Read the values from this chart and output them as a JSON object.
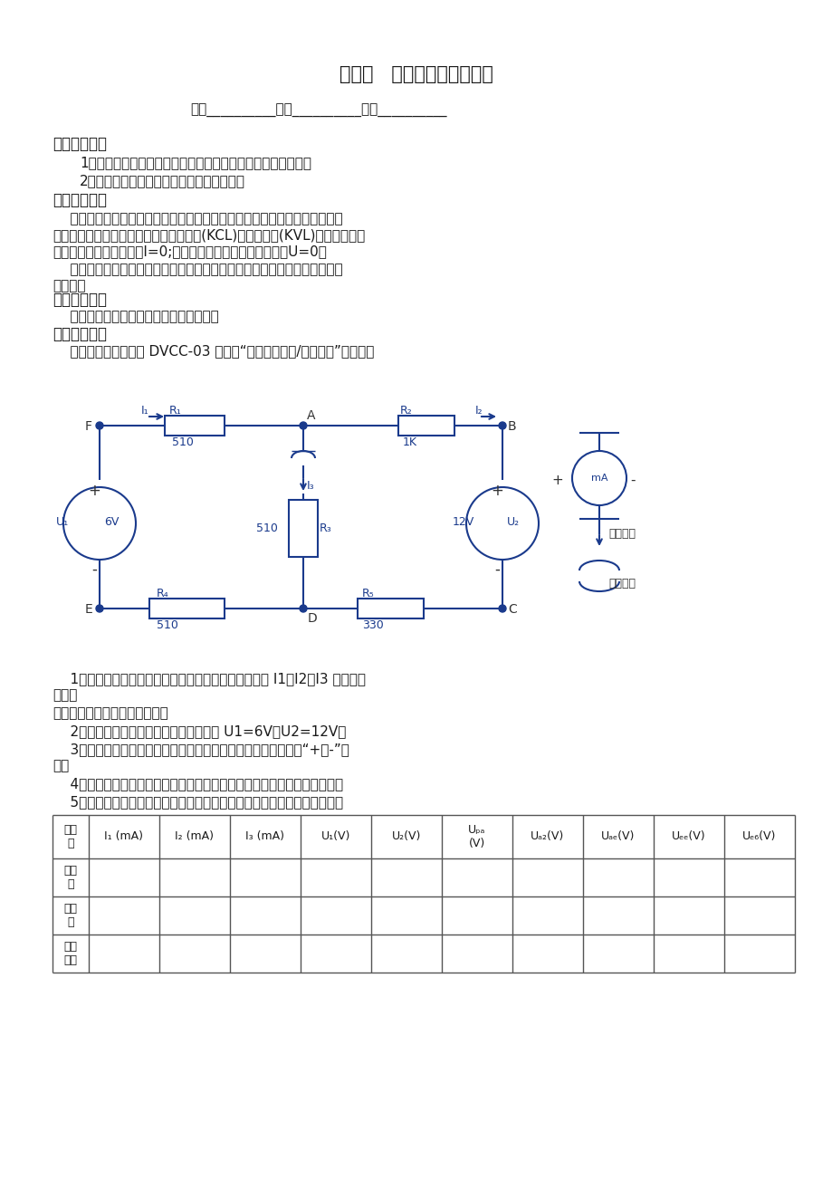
{
  "title": "实验一   基尔霍夫定律的验证",
  "info_line": "班级__________姓名__________学号__________",
  "s1_title": "一、实验目的",
  "s1_1": "1、验证基尔霍夫定律的正确性，加深对基尔霍夫定律的理解。",
  "s1_2": "2、学会用电流插头、插座测量各支路电流。",
  "s2_title": "二、原理说明",
  "s2_p1a": "    基尔霍夫定律是电路的基本定律。测量某电路的各支路电流及每个元件两端",
  "s2_p1b": "的电压，应能分别满足基尔霍夫电流定律(KCL)和电压定律(KVL)。即对电路中",
  "s2_p1c": "的任一个节点而言，应有I=0;对任何一个闭合回路而言，应有U=0。",
  "s2_p2a": "    运用上述定律时必须注意各支路电流或闭合回路的正方向，此方向可预先任",
  "s2_p2b": "意设定。",
  "s3_title": "三、实验设备",
  "s3_content": "    可调直流稳压电源，万用表，实验电路板",
  "s4_title": "四、实验内容",
  "s4_intro": "    实验线路图如下，用 DVCC-03 挂筱的“基尔霍夫定律/叠加原理”电路板。",
  "step1a": "    1、实验前先任意设定三条支路电流正方向。如图中的 I1，I2，I3 的方向已",
  "step1b": "设定。",
  "step1c": "闭合回路的正方向可任意设定。",
  "step2": "    2、分别将两路直流稳压源接入电路，令 U1=6V，U2=12V。",
  "step3a": "    3、熟悉电流插头的结构，将电流插头的两端接至数字毫安表的“+、-”两",
  "step3b": "端。",
  "step4": "    4、将电流插头分别插入三条支路的三个电流插座中，读出并记录电流値。",
  "step5": "    5、用直流数字电压表分别测量两路电源及电阔元件上的电压値，记录之。",
  "th0": "被测\n量",
  "th1": "I₁ (mA)",
  "th2": "I₂ (mA)",
  "th3": "I₃ (mA)",
  "th4": "U₁(V)",
  "th5": "U₂(V)",
  "th6": "Uₚₐ\n(V)",
  "th7": "Uₐ₂(V)",
  "th8": "Uₐₑ(V)",
  "th9": "Uₑₑ(V)",
  "th10": "Uₑ₆(V)",
  "tr0": "计算\n値",
  "tr1": "测量\n値",
  "tr2": "相对\n误差",
  "lbl_I1": "I₁",
  "lbl_I2": "I₂",
  "lbl_I3": "I₃",
  "lbl_R1": "R₁",
  "lbl_R2": "R₂",
  "lbl_R3": "R₃",
  "lbl_R4": "R₄",
  "lbl_R5": "R₅",
  "lbl_U1": "U₁",
  "lbl_U2": "U₂",
  "lbl_6V": "6V",
  "lbl_12V": "12V",
  "lbl_510a": "510",
  "lbl_510b": "510",
  "lbl_510c": "510",
  "lbl_1K": "1K",
  "lbl_330": "330",
  "lbl_mA": "mA",
  "lbl_plus": "+",
  "lbl_minus": "-",
  "lbl_F": "F",
  "lbl_A": "A",
  "lbl_B": "B",
  "lbl_C": "C",
  "lbl_D": "D",
  "lbl_E": "E",
  "lbl_plug": "电流插头",
  "lbl_socket": "电流插座",
  "bg_color": "#ffffff",
  "text_color": "#1a1a1a",
  "circuit_color": "#1a3a8c"
}
